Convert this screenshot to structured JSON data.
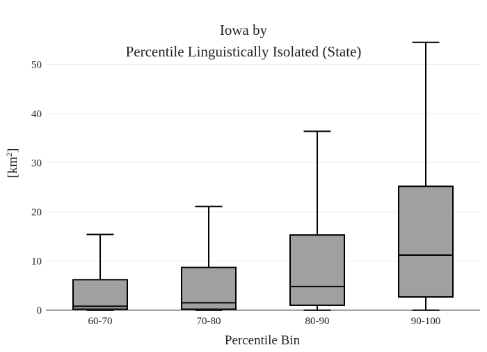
{
  "chart_data": {
    "type": "box",
    "title_line1": "Iowa  by",
    "title_line2": "Percentile Linguistically Isolated (State)",
    "xlabel": "Percentile Bin",
    "ylabel_base": "[km",
    "ylabel_sup": "2",
    "ylabel_close": "]",
    "ylim": [
      0,
      55
    ],
    "yticks": [
      0,
      10,
      20,
      30,
      40,
      50
    ],
    "ytick_labels": [
      "0",
      "10",
      "20",
      "30",
      "40",
      "50"
    ],
    "grid": true,
    "legend": "none",
    "box_color": "#a0a0a0",
    "line_color": "#000000",
    "categories": [
      "60-70",
      "70-80",
      "80-90",
      "90-100"
    ],
    "boxes": [
      {
        "category": "60-70",
        "min": 0.0,
        "q1": 0.2,
        "median": 0.8,
        "q3": 6.2,
        "max": 15.4
      },
      {
        "category": "70-80",
        "min": 0.0,
        "q1": 0.2,
        "median": 1.5,
        "q3": 8.7,
        "max": 21.1
      },
      {
        "category": "80-90",
        "min": 0.0,
        "q1": 1.0,
        "median": 4.8,
        "q3": 15.3,
        "max": 36.4
      },
      {
        "category": "90-100",
        "min": 0.0,
        "q1": 2.7,
        "median": 11.2,
        "q3": 25.2,
        "max": 54.5
      }
    ]
  }
}
